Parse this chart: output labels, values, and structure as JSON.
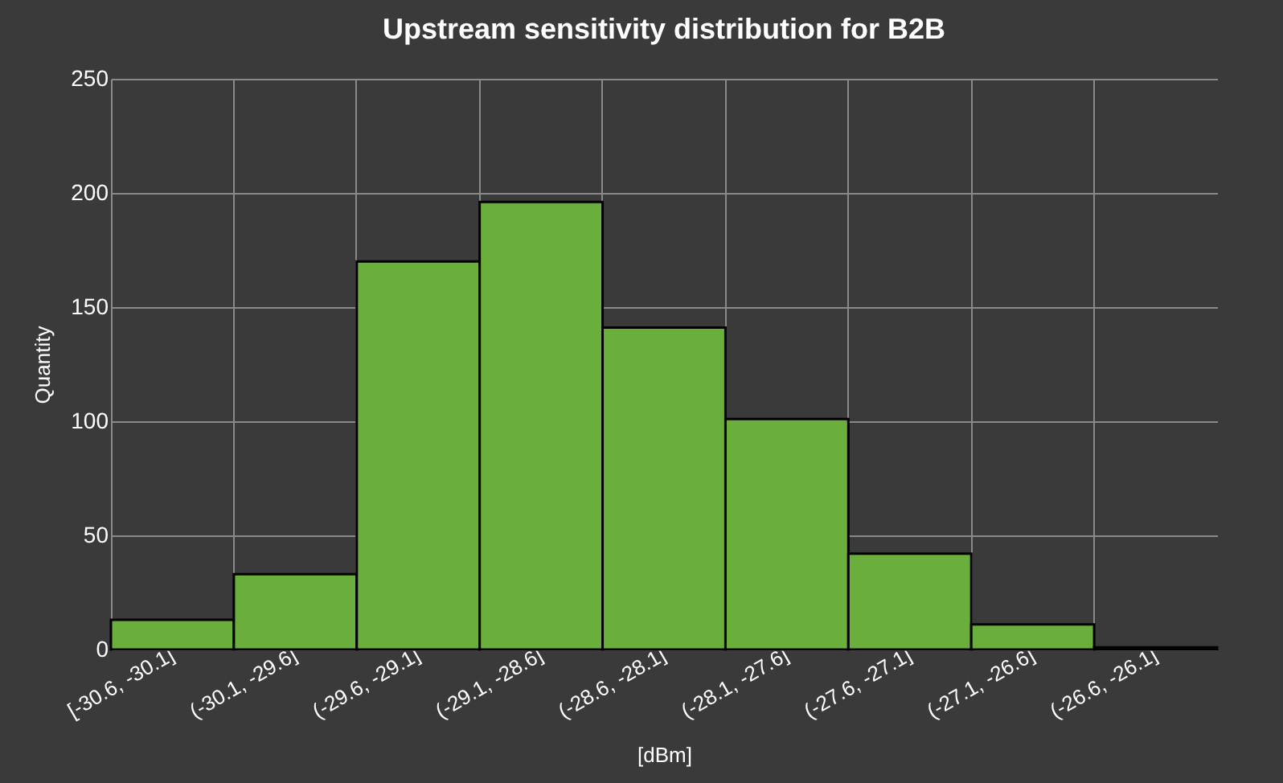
{
  "chart_data": {
    "type": "bar",
    "title": "Upstream sensitivity distribution for B2B",
    "xlabel": "[dBm]",
    "ylabel": "Quantity",
    "categories": [
      "[-30.6, -30.1]",
      "(-30.1, -29.6]",
      "(-29.6, -29.1]",
      "(-29.1, -28.6]",
      "(-28.6, -28.1]",
      "(-28.1, -27.6]",
      "(-27.6, -27.1]",
      "(-27.1, -26.6]",
      "(-26.6, -26.1]"
    ],
    "values": [
      13,
      33,
      170,
      196,
      141,
      101,
      42,
      11,
      1
    ],
    "color": "#6aae3c",
    "ylim": [
      0,
      250
    ],
    "yticks": [
      0,
      50,
      100,
      150,
      200,
      250
    ],
    "grid": true
  }
}
